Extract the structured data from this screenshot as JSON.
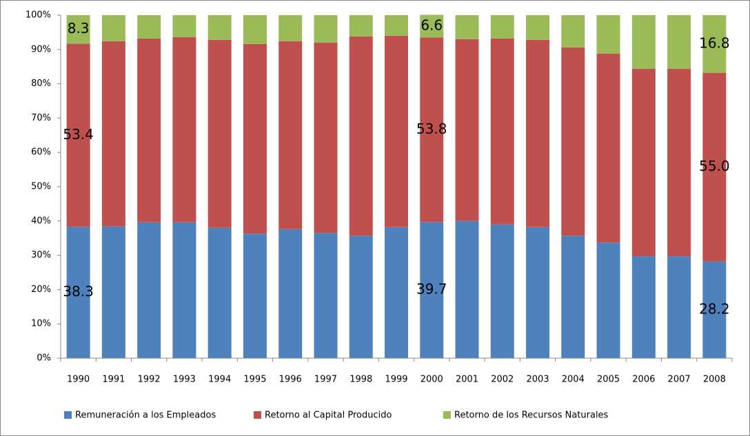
{
  "chart_data": {
    "type": "stacked_bar",
    "categories": [
      "1990",
      "1991",
      "1992",
      "1993",
      "1994",
      "1995",
      "1996",
      "1997",
      "1998",
      "1999",
      "2000",
      "2001",
      "2002",
      "2003",
      "2004",
      "2005",
      "2006",
      "2007",
      "2008"
    ],
    "series": [
      {
        "name": "Remuneración a los Empleados",
        "color": "#4f81bd",
        "values": [
          38.3,
          38.4,
          39.6,
          39.6,
          38.0,
          36.3,
          37.6,
          36.5,
          35.7,
          38.2,
          39.7,
          40.0,
          39.0,
          38.2,
          35.7,
          33.7,
          29.7,
          29.7,
          28.2
        ],
        "value_labels": [
          "38.3",
          null,
          null,
          null,
          null,
          null,
          null,
          null,
          null,
          null,
          "39.7",
          null,
          null,
          null,
          null,
          null,
          null,
          null,
          "28.2"
        ]
      },
      {
        "name": "Retorno al Capital Producido",
        "color": "#c0504d",
        "values": [
          53.4,
          54.0,
          53.6,
          54.0,
          54.8,
          55.3,
          54.8,
          55.5,
          58.1,
          55.8,
          53.8,
          53.0,
          54.2,
          54.6,
          54.9,
          55.1,
          54.7,
          54.7,
          55.0
        ],
        "value_labels": [
          "53.4",
          null,
          null,
          null,
          null,
          null,
          null,
          null,
          null,
          null,
          "53.8",
          null,
          null,
          null,
          null,
          null,
          null,
          null,
          "55.0"
        ]
      },
      {
        "name": "Retorno de los Recursos Naturales",
        "color": "#9bbb59",
        "values": [
          8.3,
          7.6,
          6.8,
          6.4,
          7.2,
          8.4,
          7.6,
          8.0,
          6.2,
          6.0,
          6.6,
          7.0,
          6.8,
          7.2,
          9.4,
          11.2,
          15.6,
          15.6,
          16.8
        ],
        "value_labels": [
          "8.3",
          null,
          null,
          null,
          null,
          null,
          null,
          null,
          null,
          null,
          "6.6",
          null,
          null,
          null,
          null,
          null,
          null,
          null,
          "16.8"
        ]
      }
    ],
    "ylim": [
      0,
      100
    ],
    "yticks": [
      {
        "value": 0,
        "label": "0%"
      },
      {
        "value": 10,
        "label": "10%"
      },
      {
        "value": 20,
        "label": "20%"
      },
      {
        "value": 30,
        "label": "30%"
      },
      {
        "value": 40,
        "label": "40%"
      },
      {
        "value": 50,
        "label": "50%"
      },
      {
        "value": 60,
        "label": "60%"
      },
      {
        "value": 70,
        "label": "70%"
      },
      {
        "value": 80,
        "label": "80%"
      },
      {
        "value": 90,
        "label": "90%"
      },
      {
        "value": 100,
        "label": "100%"
      }
    ],
    "grid": false,
    "legend": "bottom"
  }
}
